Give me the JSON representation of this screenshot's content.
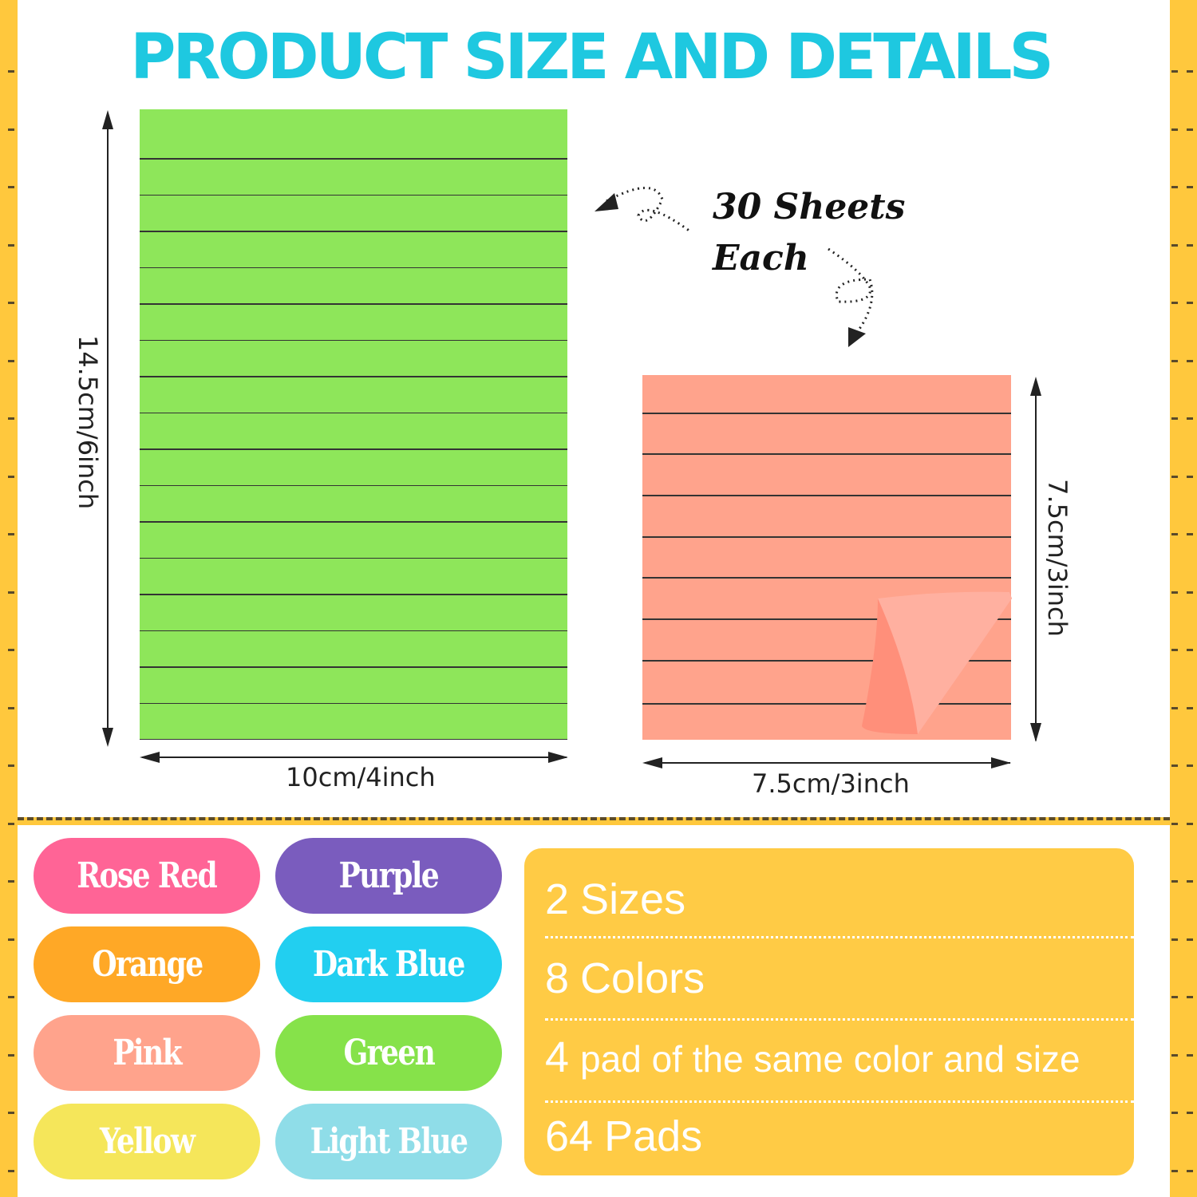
{
  "title": "PRODUCT SIZE AND DETAILS",
  "large_pad": {
    "color": "#8EE65A",
    "height_label": "14.5cm/6inch",
    "width_label": "10cm/4inch"
  },
  "small_pad": {
    "color": "#FFA38C",
    "height_label": "7.5cm/3inch",
    "width_label": "7.5cm/3inch"
  },
  "sheets": {
    "line1": "30 Sheets",
    "line2": "Each"
  },
  "colors": [
    {
      "label": "Rose Red",
      "color": "#FF6496"
    },
    {
      "label": "Purple",
      "color": "#7A5CBE"
    },
    {
      "label": "Orange",
      "color": "#FFA826"
    },
    {
      "label": "Dark Blue",
      "color": "#22CFF0"
    },
    {
      "label": "Pink",
      "color": "#FFA38C"
    },
    {
      "label": "Green",
      "color": "#86E24A"
    },
    {
      "label": "Yellow",
      "color": "#F5E65A"
    },
    {
      "label": "Light Blue",
      "color": "#8FDDE8"
    }
  ],
  "details": [
    {
      "num": "2",
      "text": "Sizes"
    },
    {
      "num": "8",
      "text": "Colors"
    },
    {
      "num": "4",
      "text": "pad of the same color and size"
    },
    {
      "num": "64",
      "text": "Pads"
    }
  ],
  "accent": "#FFC83D"
}
